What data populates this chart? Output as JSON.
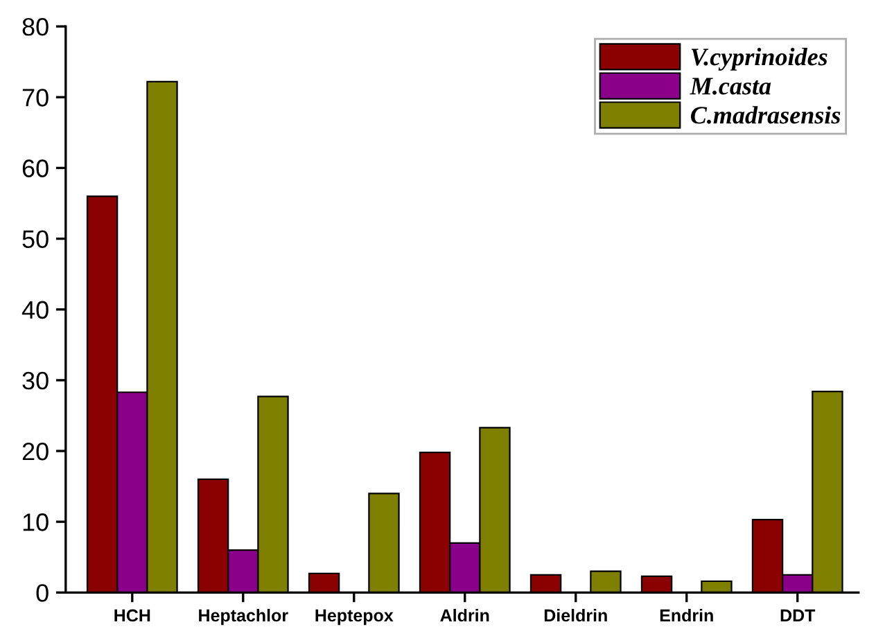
{
  "chart_data": {
    "type": "bar",
    "categories": [
      "HCH",
      "Heptachlor",
      "Heptepox",
      "Aldrin",
      "Dieldrin",
      "Endrin",
      "DDT"
    ],
    "series": [
      {
        "name": "V.cyprinoides",
        "color": "#8b0000",
        "values": [
          56,
          16,
          2.7,
          19.8,
          2.5,
          2.3,
          10.3
        ]
      },
      {
        "name": "M.casta",
        "color": "#8b008b",
        "values": [
          28.3,
          6,
          null,
          7,
          null,
          null,
          2.5
        ]
      },
      {
        "name": "C.madrasensis",
        "color": "#808000",
        "values": [
          72.2,
          27.7,
          14,
          23.3,
          3,
          1.6,
          28.4
        ]
      }
    ],
    "ylim": [
      0,
      80
    ],
    "yticks": [
      0,
      10,
      20,
      30,
      40,
      50,
      60,
      70,
      80
    ],
    "grid": false,
    "legend": "top right"
  }
}
